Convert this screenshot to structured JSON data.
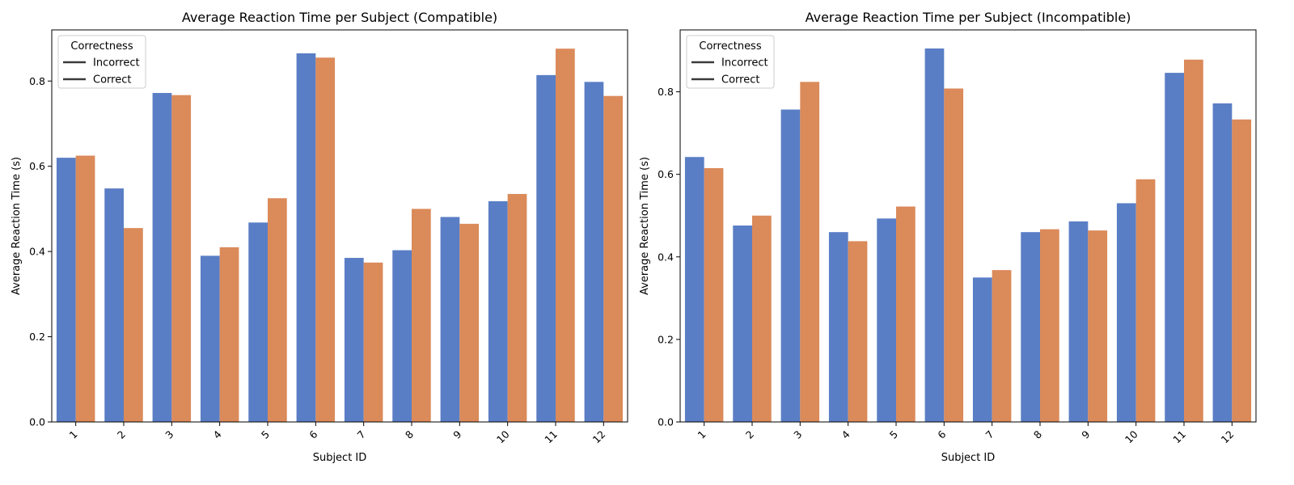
{
  "chart_data": [
    {
      "type": "bar",
      "title": "Average Reaction Time per Subject (Compatible)",
      "xlabel": "Subject ID",
      "ylabel": "Average Reaction Time (s)",
      "ylim": [
        0,
        0.92
      ],
      "yticks": [
        "0.0",
        "0.2",
        "0.4",
        "0.6",
        "0.8"
      ],
      "categories": [
        "1",
        "2",
        "3",
        "4",
        "5",
        "6",
        "7",
        "8",
        "9",
        "10",
        "11",
        "12"
      ],
      "legend": {
        "title": "Correctness",
        "entries": [
          "Incorrect",
          "Correct"
        ],
        "placement": "top-left",
        "line_color": "#3a3a3a"
      },
      "series": [
        {
          "label": "Incorrect",
          "color": "#5a7ec5",
          "values": [
            0.62,
            0.548,
            0.772,
            0.39,
            0.468,
            0.865,
            0.385,
            0.403,
            0.481,
            0.518,
            0.814,
            0.798
          ]
        },
        {
          "label": "Correct",
          "color": "#db8a5a",
          "values": [
            0.625,
            0.455,
            0.767,
            0.41,
            0.525,
            0.855,
            0.374,
            0.5,
            0.465,
            0.535,
            0.876,
            0.765
          ]
        }
      ],
      "grid": false
    },
    {
      "type": "bar",
      "title": "Average Reaction Time per Subject (Incompatible)",
      "xlabel": "Subject ID",
      "ylabel": "Average Reaction Time (s)",
      "ylim": [
        0,
        0.95
      ],
      "yticks": [
        "0.0",
        "0.2",
        "0.4",
        "0.6",
        "0.8"
      ],
      "categories": [
        "1",
        "2",
        "3",
        "4",
        "5",
        "6",
        "7",
        "8",
        "9",
        "10",
        "11",
        "12"
      ],
      "legend": {
        "title": "Correctness",
        "entries": [
          "Incorrect",
          "Correct"
        ],
        "placement": "top-left",
        "line_color": "#3a3a3a"
      },
      "series": [
        {
          "label": "Incorrect",
          "color": "#5a7ec5",
          "values": [
            0.642,
            0.476,
            0.757,
            0.46,
            0.493,
            0.905,
            0.35,
            0.46,
            0.486,
            0.53,
            0.846,
            0.772
          ]
        },
        {
          "label": "Correct",
          "color": "#db8a5a",
          "values": [
            0.615,
            0.5,
            0.824,
            0.438,
            0.522,
            0.808,
            0.368,
            0.467,
            0.464,
            0.588,
            0.878,
            0.733
          ]
        }
      ],
      "grid": false
    }
  ]
}
